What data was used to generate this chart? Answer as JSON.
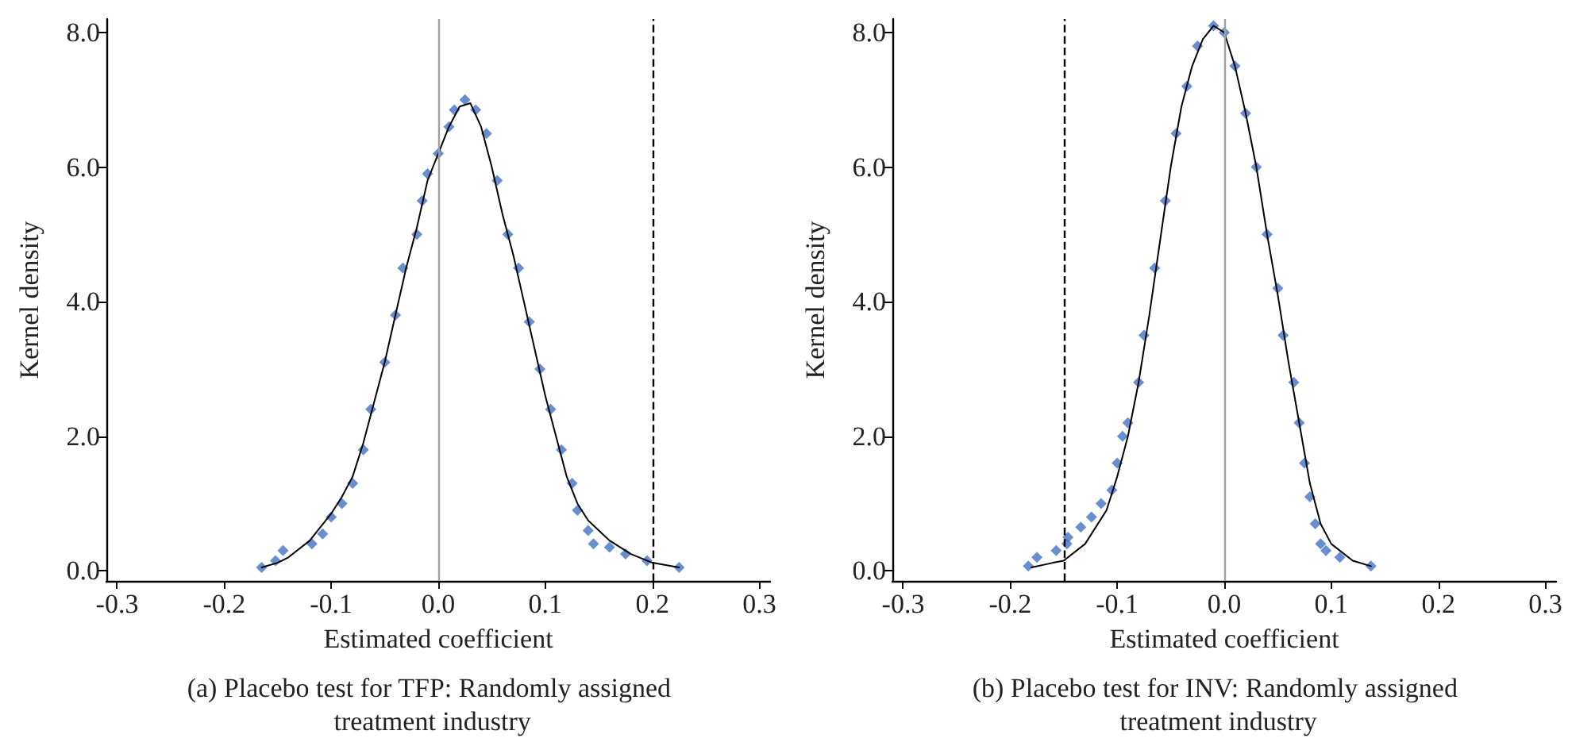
{
  "chart_data": [
    {
      "type": "scatter",
      "title": "(a) Placebo test for TFP: Randomly assigned treatment industry",
      "xlabel": "Estimated coefficient",
      "ylabel": "Kernel density",
      "marker": "diamond",
      "grid": false,
      "xlim": [
        -0.31,
        0.31
      ],
      "ylim": [
        -0.15,
        8.2
      ],
      "xticks": [
        -0.3,
        -0.2,
        -0.1,
        {
          "value": 0,
          "label": "0.0"
        },
        0.1,
        0.2,
        0.3
      ],
      "yticks": [
        {
          "value": 0,
          "label": "0.0"
        },
        {
          "value": 2,
          "label": "2.0"
        },
        {
          "value": 4,
          "label": "4.0"
        },
        {
          "value": 6,
          "label": "6.0"
        },
        {
          "value": 8,
          "label": "8.0"
        }
      ],
      "ref_lines": [
        {
          "axis": "x",
          "value": 0,
          "color": "#a0a0a0",
          "line_style": "solid"
        },
        {
          "axis": "x",
          "value": 0.2,
          "color": "#000000",
          "line_style": "dashed"
        }
      ],
      "series": [
        {
          "type": "line",
          "color": "#000000",
          "marker": "none",
          "x": [
            -0.165,
            -0.15,
            -0.14,
            -0.12,
            -0.1,
            -0.09,
            -0.08,
            -0.07,
            -0.06,
            -0.05,
            -0.04,
            -0.03,
            -0.02,
            -0.01,
            0.0,
            0.01,
            0.02,
            0.03,
            0.04,
            0.05,
            0.06,
            0.07,
            0.08,
            0.09,
            0.1,
            0.11,
            0.12,
            0.13,
            0.14,
            0.16,
            0.18,
            0.2,
            0.225
          ],
          "values": [
            0.05,
            0.12,
            0.2,
            0.45,
            0.85,
            1.1,
            1.4,
            1.9,
            2.5,
            3.1,
            3.8,
            4.5,
            5.1,
            5.8,
            6.2,
            6.6,
            6.9,
            6.95,
            6.6,
            6.0,
            5.3,
            4.7,
            4.0,
            3.3,
            2.6,
            2.0,
            1.4,
            1.0,
            0.75,
            0.45,
            0.25,
            0.12,
            0.05
          ]
        },
        {
          "color": "#4472c4",
          "x": [
            -0.165,
            -0.152,
            -0.145,
            -0.118,
            -0.108,
            -0.1,
            -0.09,
            -0.08,
            -0.07,
            -0.063,
            -0.05,
            -0.04,
            -0.033,
            -0.02,
            -0.015,
            -0.01,
            0.0,
            0.01,
            0.015,
            0.025,
            0.035,
            0.045,
            0.055,
            0.065,
            0.075,
            0.085,
            0.095,
            0.105,
            0.115,
            0.125,
            0.13,
            0.14,
            0.145,
            0.16,
            0.175,
            0.195,
            0.225
          ],
          "values": [
            0.05,
            0.15,
            0.3,
            0.4,
            0.55,
            0.8,
            1.0,
            1.3,
            1.8,
            2.4,
            3.1,
            3.8,
            4.5,
            5.0,
            5.5,
            5.9,
            6.2,
            6.6,
            6.85,
            7.0,
            6.85,
            6.5,
            5.8,
            5.0,
            4.5,
            3.7,
            3.0,
            2.4,
            1.8,
            1.3,
            0.9,
            0.6,
            0.4,
            0.35,
            0.25,
            0.15,
            0.05
          ]
        }
      ]
    },
    {
      "type": "scatter",
      "title": "(b) Placebo test for INV: Randomly assigned treatment industry",
      "xlabel": "Estimated coefficient",
      "ylabel": "Kernel density",
      "marker": "diamond",
      "grid": false,
      "xlim": [
        -0.31,
        0.31
      ],
      "ylim": [
        -0.15,
        8.2
      ],
      "xticks": [
        -0.3,
        -0.2,
        -0.1,
        {
          "value": 0,
          "label": "0.0"
        },
        0.1,
        0.2,
        0.3
      ],
      "yticks": [
        {
          "value": 0,
          "label": "0.0"
        },
        {
          "value": 2,
          "label": "2.0"
        },
        {
          "value": 4,
          "label": "4.0"
        },
        {
          "value": 6,
          "label": "6.0"
        },
        {
          "value": 8,
          "label": "8.0"
        }
      ],
      "ref_lines": [
        {
          "axis": "x",
          "value": 0,
          "color": "#a0a0a0",
          "line_style": "solid"
        },
        {
          "axis": "x",
          "value": -0.15,
          "color": "#000000",
          "line_style": "dashed"
        }
      ],
      "series": [
        {
          "type": "line",
          "color": "#000000",
          "marker": "none",
          "x": [
            -0.18,
            -0.16,
            -0.15,
            -0.13,
            -0.11,
            -0.1,
            -0.09,
            -0.08,
            -0.07,
            -0.06,
            -0.05,
            -0.04,
            -0.03,
            -0.02,
            -0.01,
            0.0,
            0.01,
            0.02,
            0.03,
            0.04,
            0.05,
            0.06,
            0.07,
            0.08,
            0.09,
            0.1,
            0.12,
            0.137
          ],
          "values": [
            0.05,
            0.12,
            0.15,
            0.4,
            0.9,
            1.4,
            2.0,
            2.8,
            3.8,
            4.9,
            6.0,
            6.9,
            7.5,
            7.9,
            8.1,
            8.0,
            7.5,
            6.8,
            6.0,
            5.0,
            4.1,
            3.1,
            2.2,
            1.3,
            0.7,
            0.4,
            0.15,
            0.07
          ]
        },
        {
          "color": "#4472c4",
          "x": [
            -0.183,
            -0.175,
            -0.157,
            -0.147,
            -0.146,
            -0.134,
            -0.124,
            -0.115,
            -0.105,
            -0.1,
            -0.095,
            -0.09,
            -0.08,
            -0.075,
            -0.065,
            -0.055,
            -0.045,
            -0.035,
            -0.025,
            -0.01,
            0.0,
            0.01,
            0.02,
            0.03,
            0.04,
            0.05,
            0.055,
            0.065,
            0.07,
            0.075,
            0.08,
            0.085,
            0.09,
            0.095,
            0.108,
            0.137
          ],
          "values": [
            0.07,
            0.2,
            0.3,
            0.4,
            0.5,
            0.65,
            0.8,
            1.0,
            1.2,
            1.6,
            2.0,
            2.2,
            2.8,
            3.5,
            4.5,
            5.5,
            6.5,
            7.2,
            7.8,
            8.1,
            8.0,
            7.5,
            6.8,
            6.0,
            5.0,
            4.2,
            3.5,
            2.8,
            2.2,
            1.6,
            1.1,
            0.7,
            0.4,
            0.3,
            0.2,
            0.07
          ]
        }
      ]
    }
  ]
}
